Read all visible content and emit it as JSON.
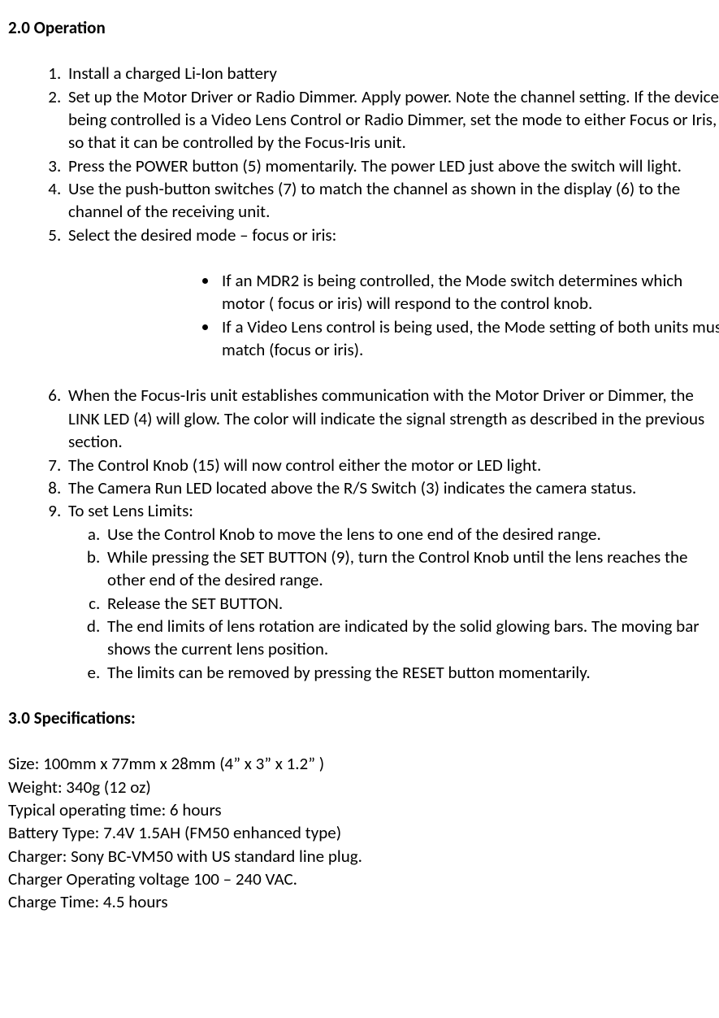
{
  "operation": {
    "heading": "2.0 Operation",
    "items": {
      "1": "Install a charged Li-Ion battery",
      "2": "Set up the Motor Driver or Radio Dimmer. Apply power. Note the channel setting. If the device being controlled is a Video Lens Control or Radio Dimmer, set the mode to either Focus or Iris, so that it can be controlled by the Focus-Iris unit.",
      "3": "Press the POWER button (5) momentarily. The power LED just above the switch will light.",
      "4": "Use the push-button switches (7) to match the channel as shown in the display (6) to the channel of the receiving unit.",
      "5": "Select the desired mode – focus or iris:",
      "6": "When the Focus-Iris unit establishes communication with the Motor Driver or Dimmer, the LINK LED (4) will glow. The color will indicate the signal strength as described in the previous section.",
      "7": "The Control Knob (15) will now control either the motor or LED light.",
      "8": "The Camera Run LED located above the R/S Switch (3) indicates the camera status.",
      "9": "To set Lens Limits:"
    },
    "mode_bullets": {
      "a": "If an MDR2 is being controlled, the Mode switch determines which motor ( focus or iris) will respond to the control knob.",
      "b": "If a Video Lens control is being used, the Mode setting of both units must match (focus or iris)."
    },
    "lens_limits": {
      "a": "Use the Control Knob to move the lens to one end of the desired range.",
      "b": "While pressing the SET BUTTON (9), turn the Control Knob until the lens reaches the other end of the desired range.",
      "c": "Release the SET BUTTON.",
      "d": "The end limits of lens rotation are indicated by the solid glowing bars. The moving bar shows the current lens position.",
      "e": "The limits can be removed by pressing the RESET button momentarily."
    }
  },
  "specs": {
    "heading": "3.0 Specifications:",
    "lines": {
      "size": "Size: 100mm x 77mm x 28mm (4” x 3” x 1.2” )",
      "weight": "Weight: 340g (12 oz)",
      "optime": "Typical operating time: 6 hours",
      "battery": "Battery Type: 7.4V 1.5AH (FM50 enhanced type)",
      "charger": "Charger: Sony BC-VM50 with US standard line plug.",
      "voltage": "Charger Operating voltage 100 – 240 VAC.",
      "chargetime": "Charge Time: 4.5 hours"
    }
  }
}
